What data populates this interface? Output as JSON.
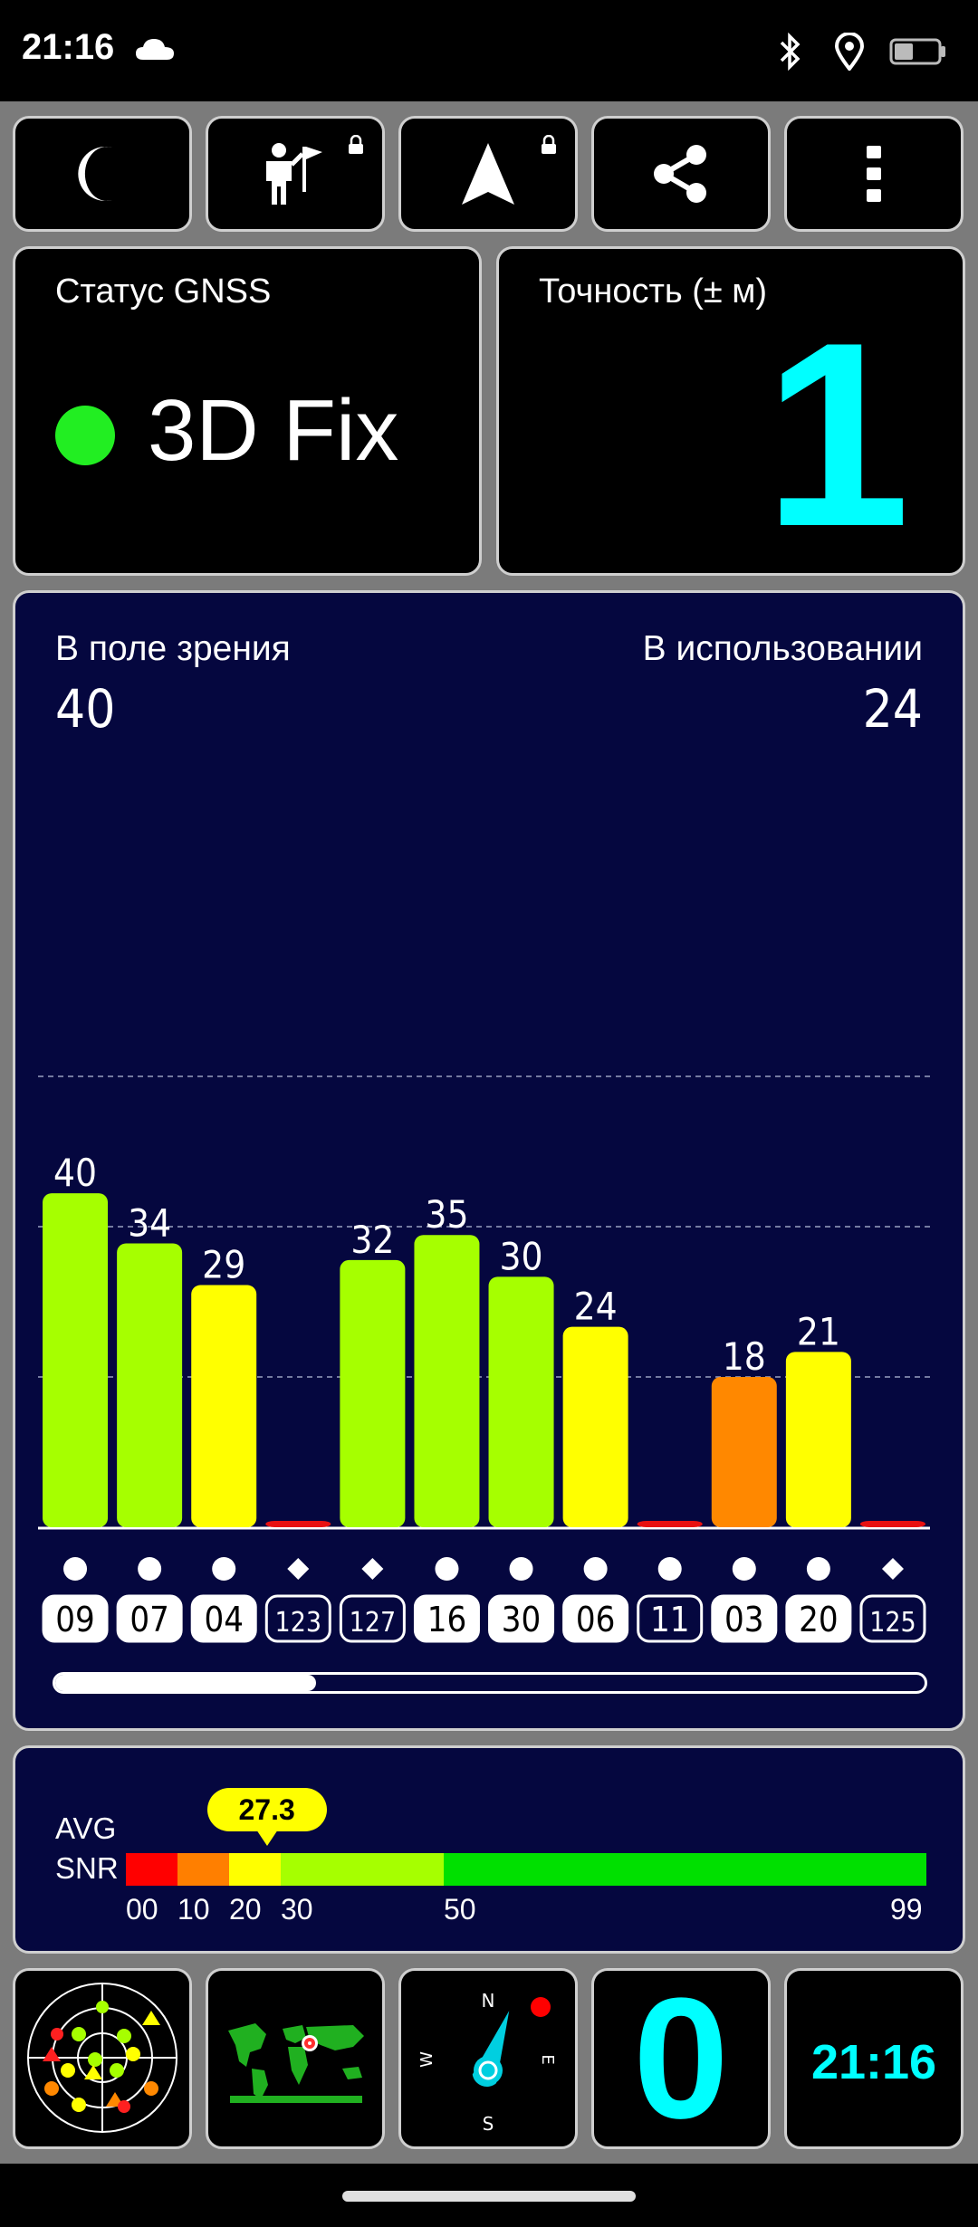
{
  "status_bar": {
    "time": "21:16",
    "weather_icon": "cloud-icon",
    "icons": [
      "bluetooth-icon",
      "location-pin-icon",
      "battery-icon"
    ]
  },
  "toolbar": {
    "buttons": [
      {
        "name": "night-mode-button",
        "icon": "moon-icon",
        "locked": false
      },
      {
        "name": "waypoint-button",
        "icon": "person-flag-icon",
        "locked": true
      },
      {
        "name": "navigate-button",
        "icon": "navigation-arrow-icon",
        "locked": true
      },
      {
        "name": "share-button",
        "icon": "share-icon",
        "locked": false
      },
      {
        "name": "more-options-button",
        "icon": "more-vertical-icon",
        "locked": false
      }
    ]
  },
  "gnss_status": {
    "label": "Статус GNSS",
    "value": "3D Fix",
    "indicator_color": "#22ee22"
  },
  "accuracy": {
    "label": "Точность (± м)",
    "value": "1",
    "value_color": "#00ffff"
  },
  "satellites": {
    "in_view_label": "В поле зрения",
    "in_view_count": "40",
    "in_use_label": "В использовании",
    "in_use_count": "24",
    "scroll_position": 0.3
  },
  "chart_data": {
    "type": "bar",
    "title": "",
    "xlabel": "",
    "ylabel": "",
    "ylim": [
      0,
      54
    ],
    "gridlines": [
      18,
      36,
      54
    ],
    "categories": [
      "09",
      "07",
      "04",
      "123",
      "127",
      "16",
      "30",
      "06",
      "11",
      "03",
      "20",
      "125"
    ],
    "values": [
      40,
      34,
      29,
      0,
      32,
      35,
      30,
      24,
      0,
      18,
      21,
      0
    ],
    "value_labels": [
      "40",
      "34",
      "29",
      "",
      "32",
      "35",
      "30",
      "24",
      "",
      "18",
      "21",
      ""
    ],
    "markers": [
      "circle",
      "circle",
      "circle",
      "diamond",
      "diamond",
      "circle",
      "circle",
      "circle",
      "circle",
      "circle",
      "circle",
      "diamond"
    ],
    "in_use": [
      true,
      true,
      true,
      false,
      false,
      true,
      true,
      true,
      false,
      true,
      true,
      false
    ],
    "colors": [
      "#a6ff00",
      "#a6ff00",
      "#ffff00",
      "#e81010",
      "#a6ff00",
      "#a6ff00",
      "#a6ff00",
      "#ffff00",
      "#e81010",
      "#ff8800",
      "#ffff00",
      "#e81010"
    ]
  },
  "avg_snr": {
    "label_line1": "AVG",
    "label_line2": "SNR",
    "value": 27.3,
    "value_label": "27.3",
    "scale_labels": [
      "00",
      "10",
      "20",
      "30",
      "50",
      "99"
    ],
    "segments": [
      {
        "from": 0,
        "to": 10,
        "color": "#ff0000"
      },
      {
        "from": 10,
        "to": 20,
        "color": "#ff7f00"
      },
      {
        "from": 20,
        "to": 30,
        "color": "#ffff00"
      },
      {
        "from": 30,
        "to": 50,
        "color": "#a6ff00"
      },
      {
        "from": 50,
        "to": 99,
        "color": "#00e000"
      }
    ]
  },
  "bottom_tiles": {
    "speed_value": "0",
    "clock": "21:16",
    "compass_labels": {
      "n": "N",
      "e": "E",
      "s": "S",
      "w": "W"
    }
  }
}
